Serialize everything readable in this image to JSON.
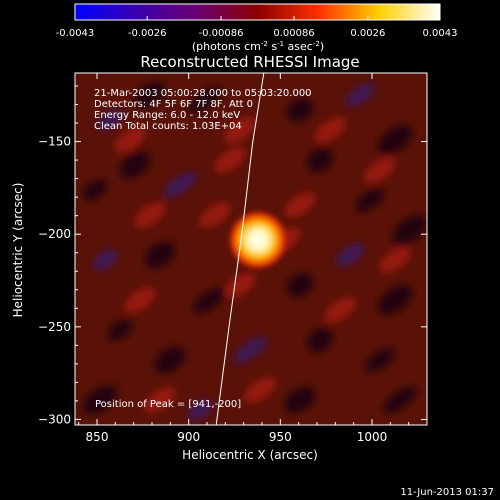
{
  "chart_data": {
    "type": "heatmap",
    "title": "Reconstructed RHESSI Image",
    "xlabel": "Heliocentric X (arcsec)",
    "ylabel": "Heliocentric Y (arcsec)",
    "xlim": [
      838,
      1030
    ],
    "ylim": [
      -303,
      -113
    ],
    "x_ticks": [
      850,
      900,
      950,
      1000
    ],
    "y_ticks": [
      -150,
      -200,
      -250,
      -300
    ],
    "colorbar": {
      "min": -0.0043,
      "max": 0.0043,
      "ticks": [
        "-0.0043",
        "-0.0026",
        "-0.00086",
        "0.00086",
        "0.0026",
        "0.0043"
      ],
      "units": "(photons cm<sup>-2</sup> s<sup>-1</sup> asec<sup>-2</sup>)",
      "colormap": [
        "#0000ff",
        "#3a00b0",
        "#6a0072",
        "#8a0000",
        "#ff3000",
        "#ffd000",
        "#ffffff"
      ]
    },
    "annotations": [
      "21-Mar-2003 05:00:28.000 to 05:03:20.000",
      "Detectors: 4F 5F 6F 7F 8F, Att 0",
      "Energy Range: 6.0 - 12.0 keV",
      "Clean     Total counts: 1.03E+04"
    ],
    "peak_label": "Position of Peak = [941,-200]",
    "peak": {
      "x": 941,
      "y": -200,
      "value": 0.0043
    },
    "limb_curve": [
      [
        941,
        -113
      ],
      [
        935,
        -150
      ],
      [
        929,
        -200
      ],
      [
        922,
        -250
      ],
      [
        915,
        -303
      ]
    ],
    "timestamp": "11-Jun-2013 01:37"
  }
}
